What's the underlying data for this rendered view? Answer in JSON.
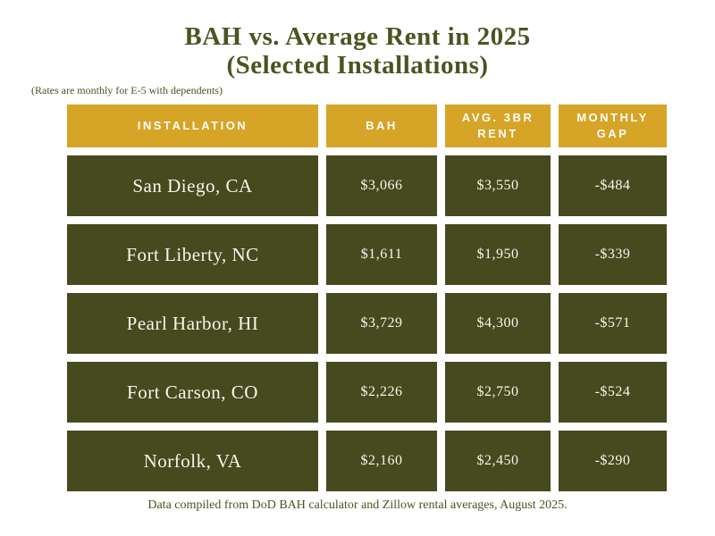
{
  "title_line1": "BAH vs. Average Rent in 2025",
  "title_line2": "(Selected Installations)",
  "note": "(Rates are monthly for E-5 with dependents)",
  "footer": "Data compiled from DoD BAH calculator and Zillow rental averages, August 2025.",
  "colors": {
    "header_bg": "#d6a426",
    "cell_bg": "#464a1e",
    "title_text": "#4d531f",
    "cell_text": "#f8f5ea",
    "page_bg": "#ffffff"
  },
  "table": {
    "headers": [
      "INSTALLATION",
      "BAH",
      "AVG. 3BR RENT",
      "MONTHLY GAP"
    ],
    "rows": [
      {
        "installation": "San Diego, CA",
        "bah": "$3,066",
        "rent": "$3,550",
        "gap": "-$484"
      },
      {
        "installation": "Fort Liberty, NC",
        "bah": "$1,611",
        "rent": "$1,950",
        "gap": "-$339"
      },
      {
        "installation": "Pearl Harbor, HI",
        "bah": "$3,729",
        "rent": "$4,300",
        "gap": "-$571"
      },
      {
        "installation": "Fort Carson, CO",
        "bah": "$2,226",
        "rent": "$2,750",
        "gap": "-$524"
      },
      {
        "installation": "Norfolk, VA",
        "bah": "$2,160",
        "rent": "$2,450",
        "gap": "-$290"
      }
    ]
  },
  "chart_data": {
    "type": "table",
    "title": "BAH vs. Average Rent in 2025 (Selected Installations)",
    "subtitle": "(Rates are monthly for E-5 with dependents)",
    "columns": [
      "Installation",
      "BAH",
      "Avg. 3BR Rent",
      "Monthly Gap"
    ],
    "rows": [
      [
        "San Diego, CA",
        3066,
        3550,
        -484
      ],
      [
        "Fort Liberty, NC",
        1611,
        1950,
        -339
      ],
      [
        "Pearl Harbor, HI",
        3729,
        4300,
        -571
      ],
      [
        "Fort Carson, CO",
        2226,
        2750,
        -524
      ],
      [
        "Norfolk, VA",
        2160,
        2450,
        -290
      ]
    ],
    "source": "Data compiled from DoD BAH calculator and Zillow rental averages, August 2025.",
    "units": "USD per month"
  }
}
